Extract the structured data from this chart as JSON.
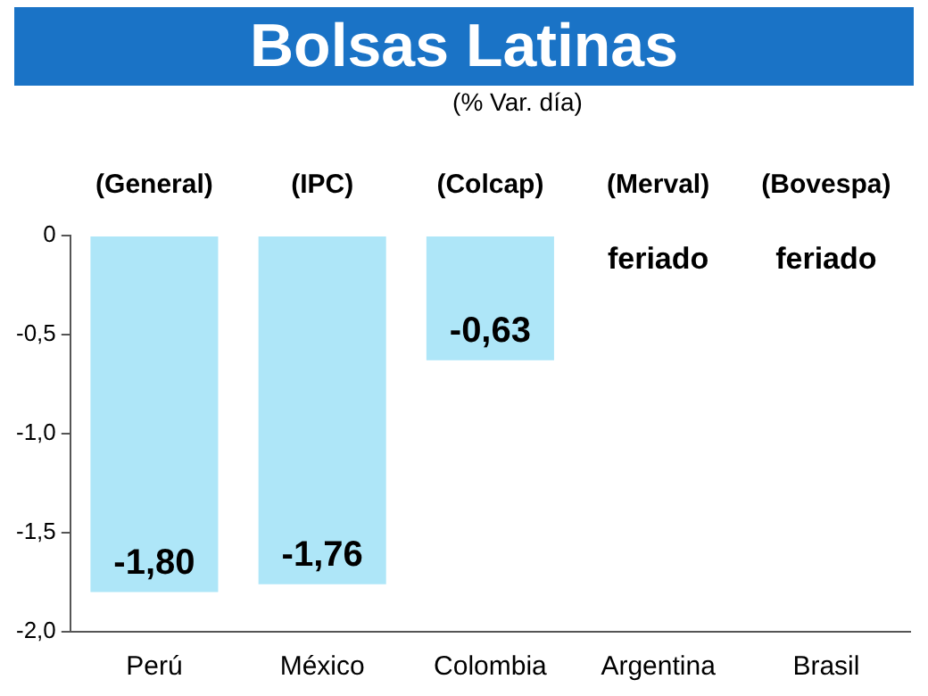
{
  "chart_data": {
    "type": "bar",
    "title": "Bolsas Latinas",
    "subtitle": "(% Var. día)",
    "categories": [
      "Perú",
      "México",
      "Colombia",
      "Argentina",
      "Brasil"
    ],
    "values": [
      -1.8,
      -1.76,
      -0.63,
      null,
      null
    ],
    "value_labels": [
      "-1,80",
      "-1,76",
      "-0,63",
      null,
      null
    ],
    "color": "#aee6f8",
    "ylim": [
      -2,
      0
    ],
    "yticks": [
      {
        "value": -2,
        "label": "-2,0"
      },
      {
        "value": -1.5,
        "label": "-1,5"
      },
      {
        "value": -1,
        "label": "-1,0"
      },
      {
        "value": -0.5,
        "label": "-0,5"
      },
      {
        "value": 0,
        "label": "0"
      }
    ],
    "grid": false,
    "annotations": [
      "(General)",
      "(IPC)",
      "(Colcap)",
      "(Merval)",
      "(Bovespa)",
      "feriado",
      "feriado"
    ]
  }
}
